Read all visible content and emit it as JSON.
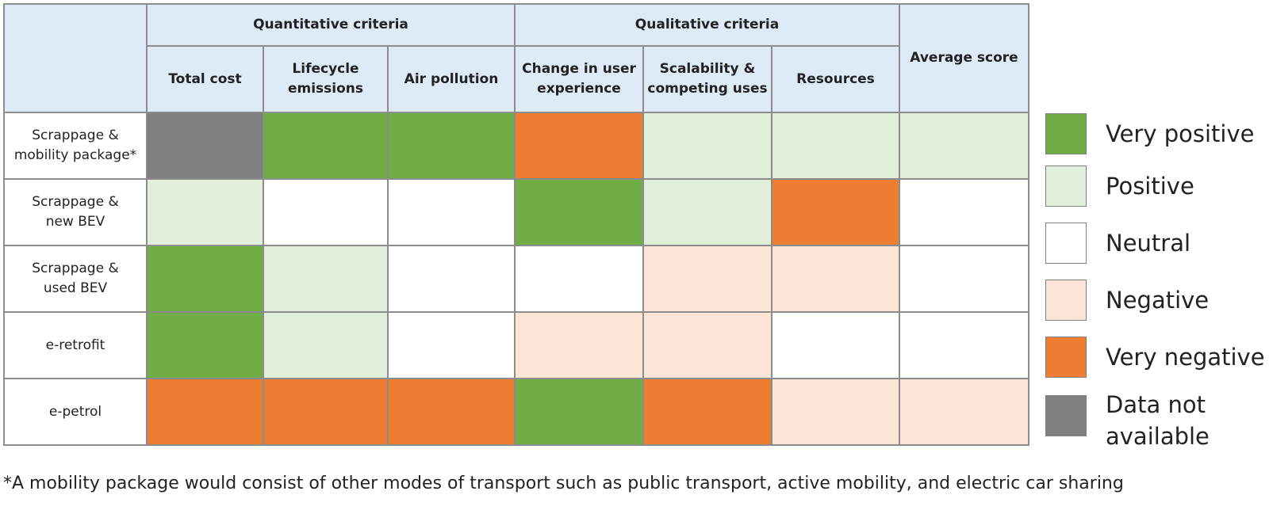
{
  "chart_data": {
    "type": "table",
    "header_groups": [
      {
        "label": "",
        "span": 1
      },
      {
        "label": "Quantitative criteria",
        "span": 3
      },
      {
        "label": "Qualitative criteria",
        "span": 3
      },
      {
        "label": "Average score",
        "span": 1
      }
    ],
    "columns": [
      "Total cost",
      "Lifecycle\nemissions",
      "Air pollution",
      "Change in user\nexperience",
      "Scalability &\ncompeting uses",
      "Resources"
    ],
    "rows": [
      {
        "label": "Scrappage &\nmobility package*",
        "ratings": [
          "data-not-available",
          "very-positive",
          "very-positive",
          "very-negative",
          "positive",
          "positive",
          "positive"
        ]
      },
      {
        "label": "Scrappage &\nnew BEV",
        "ratings": [
          "positive",
          "neutral",
          "neutral",
          "very-positive",
          "positive",
          "very-negative",
          "neutral"
        ]
      },
      {
        "label": "Scrappage &\nused BEV",
        "ratings": [
          "very-positive",
          "positive",
          "neutral",
          "neutral",
          "negative",
          "negative",
          "neutral"
        ]
      },
      {
        "label": "e-retrofit",
        "ratings": [
          "very-positive",
          "positive",
          "neutral",
          "negative",
          "negative",
          "neutral",
          "neutral"
        ]
      },
      {
        "label": "e-petrol",
        "ratings": [
          "very-negative",
          "very-negative",
          "very-negative",
          "very-positive",
          "very-negative",
          "negative",
          "negative"
        ]
      }
    ],
    "legend": [
      {
        "key": "very-positive",
        "label": "Very positive",
        "color": "#70ad47"
      },
      {
        "key": "positive",
        "label": "Positive",
        "color": "#e2efda"
      },
      {
        "key": "neutral",
        "label": "Neutral",
        "color": "#ffffff"
      },
      {
        "key": "negative",
        "label": "Negative",
        "color": "#fbe5d6"
      },
      {
        "key": "very-negative",
        "label": "Very negative",
        "color": "#ed7d31"
      },
      {
        "key": "data-not-available",
        "label": "Data not\navailable",
        "color": "#808080"
      }
    ]
  },
  "footnote": "*A mobility package would consist of other modes of transport such as public transport, active mobility, and electric car sharing"
}
